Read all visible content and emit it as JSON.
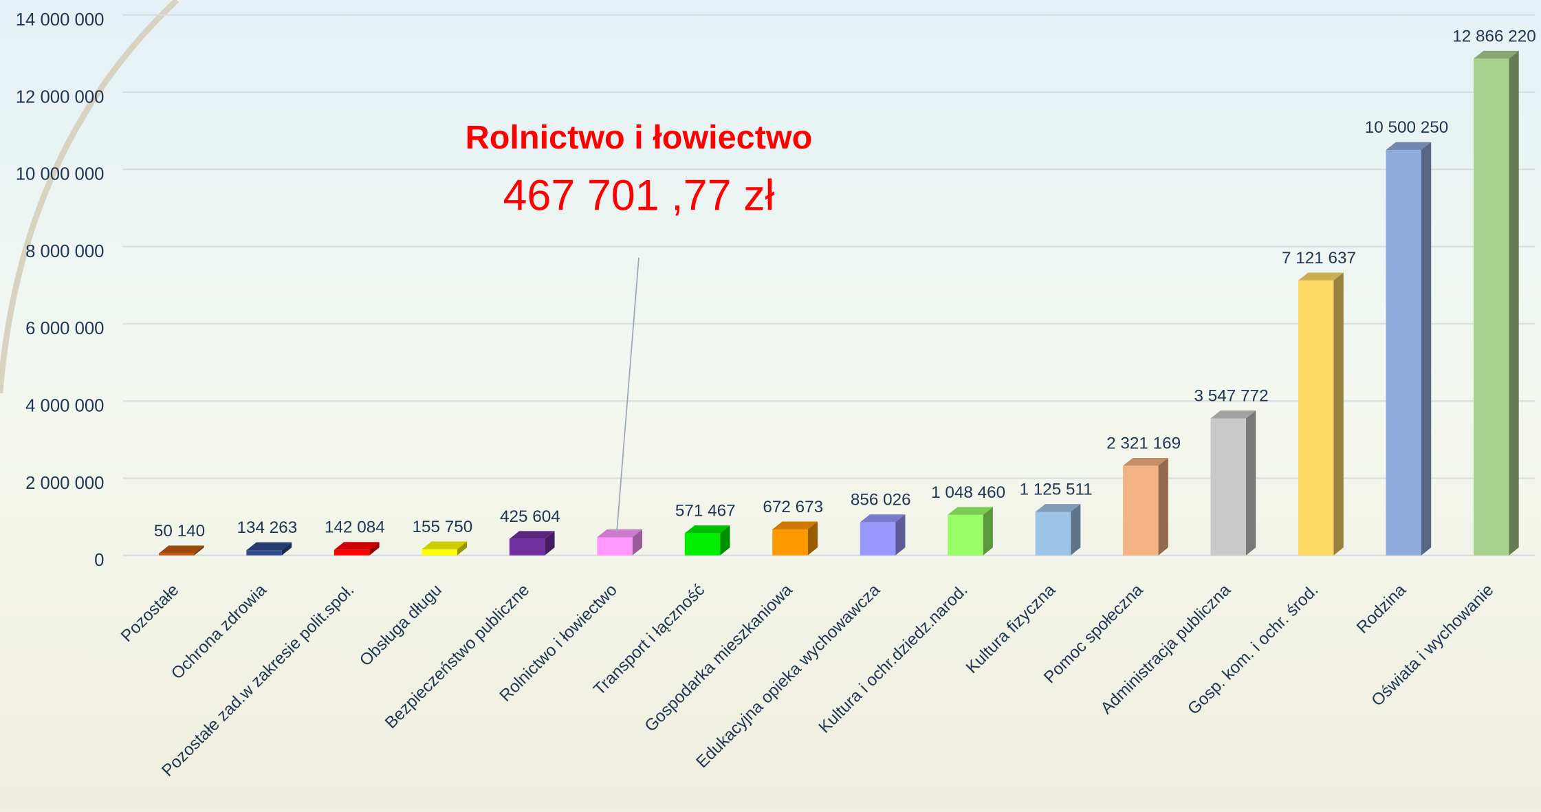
{
  "chart_data": {
    "type": "bar3d",
    "annotation": {
      "title": "Rolnictwo i łowiectwo",
      "text": "467 701 ,77 zł",
      "category_index": 5
    },
    "categories": [
      "Pozostałe",
      "Ochrona zdrowia",
      "Pozostałe zad.w zakresie polit.społ.",
      "Obsługa długu",
      "Bezpieczeństwo publiczne",
      "Rolnictwo i łowiectwo",
      "Transport i łączność",
      "Gospodarka mieszkaniowa",
      "Edukacyjna opieka wychowawcza",
      "Kultura i ochr.dziedz.narod.",
      "Kultura fizyczna",
      "Pomoc społeczna",
      "Administracja publiczna",
      "Gosp. kom. i ochr. środ.",
      "Rodzina",
      "Oświata i wychowanie"
    ],
    "values": [
      50140,
      134263,
      142084,
      155750,
      425604,
      467701.77,
      571467,
      672673,
      856026,
      1048460,
      1125511,
      2321169,
      3547772,
      7121637,
      10500250,
      12866220
    ],
    "value_labels": [
      "50 140",
      "134 263",
      "142 084",
      "155 750",
      "425 604",
      null,
      "571 467",
      "672 673",
      "856 026",
      "1 048 460",
      "1 125 511",
      "2 321 169",
      "3 547 772",
      "7 121 637",
      "10 500 250",
      "12 866 220"
    ],
    "colors": [
      "#c55a11",
      "#2f4b8c",
      "#ff0000",
      "#ffff00",
      "#7030a0",
      "#ff99ff",
      "#00ee00",
      "#ff9900",
      "#9999ff",
      "#99ff66",
      "#9dc3e6",
      "#f4b183",
      "#c9c9c9",
      "#ffd966",
      "#8faadc",
      "#a9d18e"
    ],
    "ylim": [
      0,
      14000000
    ],
    "yticks": [
      0,
      {
        "value": 2000000,
        "label": "2 000 000"
      },
      {
        "value": 4000000,
        "label": "4 000 000"
      },
      {
        "value": 6000000,
        "label": "6 000 000"
      },
      {
        "value": 8000000,
        "label": "8 000 000"
      },
      {
        "value": 10000000,
        "label": "10 000 000"
      },
      {
        "value": 12000000,
        "label": "12 000 000"
      },
      {
        "value": 14000000,
        "label": "14 000 000"
      }
    ],
    "grid": true
  }
}
